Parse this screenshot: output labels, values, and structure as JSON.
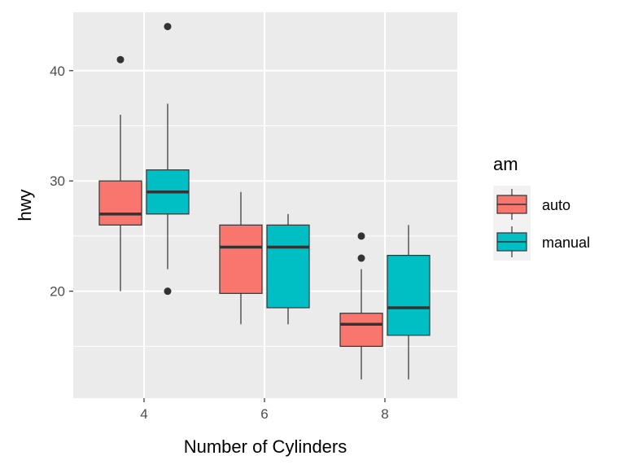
{
  "chart_data": {
    "type": "boxplot",
    "xlabel": "Number of Cylinders",
    "ylabel": "hwy",
    "categories": [
      "4",
      "6",
      "8"
    ],
    "ylim": [
      10.3,
      45.3
    ],
    "yticks": [
      20,
      30,
      40
    ],
    "yminor": [
      15,
      25,
      35
    ],
    "grid": true,
    "legend": {
      "title": "am",
      "position": "right"
    },
    "background": "#ebebeb",
    "grid_color": "#ffffff",
    "series": [
      {
        "name": "auto",
        "color": "#f8766d",
        "boxes": [
          {
            "category": "4",
            "whisker_low": 20,
            "q1": 26,
            "median": 27,
            "q3": 30,
            "whisker_high": 36,
            "outliers": [
              41
            ]
          },
          {
            "category": "6",
            "whisker_low": 17,
            "q1": 19.8,
            "median": 24,
            "q3": 26,
            "whisker_high": 29,
            "outliers": []
          },
          {
            "category": "8",
            "whisker_low": 12,
            "q1": 15,
            "median": 17,
            "q3": 18,
            "whisker_high": 22,
            "outliers": [
              23,
              25
            ]
          }
        ]
      },
      {
        "name": "manual",
        "color": "#00bfc4",
        "boxes": [
          {
            "category": "4",
            "whisker_low": 22,
            "q1": 27,
            "median": 29,
            "q3": 31,
            "whisker_high": 37,
            "outliers": [
              20,
              44
            ]
          },
          {
            "category": "6",
            "whisker_low": 17,
            "q1": 18.5,
            "median": 24,
            "q3": 26,
            "whisker_high": 27,
            "outliers": []
          },
          {
            "category": "8",
            "whisker_low": 12,
            "q1": 16,
            "median": 18.5,
            "q3": 23.25,
            "whisker_high": 26,
            "outliers": []
          }
        ]
      }
    ]
  }
}
